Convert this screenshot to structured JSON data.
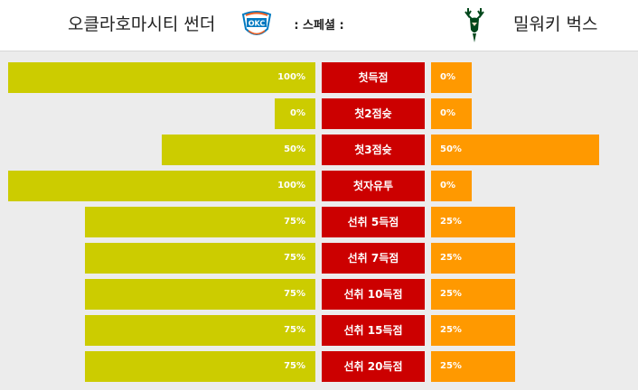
{
  "header": {
    "home_team": "오클라호마시티 썬더",
    "away_team": "밀워키 벅스",
    "center_label": ": 스페셜 :"
  },
  "logos": {
    "home": {
      "name": "okc-thunder-logo",
      "color": "#007ac1",
      "accent": "#ef6125",
      "text": "OKC"
    },
    "away": {
      "name": "bucks-deer-logo",
      "color": "#00471b",
      "accent": "#eee1c6"
    }
  },
  "colors": {
    "home_bar": "#cccc00",
    "away_bar": "#ff9900",
    "label_bg": "#cc0000"
  },
  "rows": [
    {
      "label": "첫득점",
      "home": "100%",
      "away": "0%",
      "home_pct": 100,
      "away_pct": 0
    },
    {
      "label": "첫2점슛",
      "home": "0%",
      "away": "0%",
      "home_pct": 0,
      "away_pct": 0
    },
    {
      "label": "첫3점슛",
      "home": "50%",
      "away": "50%",
      "home_pct": 50,
      "away_pct": 50
    },
    {
      "label": "첫자유투",
      "home": "100%",
      "away": "0%",
      "home_pct": 100,
      "away_pct": 0
    },
    {
      "label": "선취 5득점",
      "home": "75%",
      "away": "25%",
      "home_pct": 75,
      "away_pct": 25
    },
    {
      "label": "선취 7득점",
      "home": "75%",
      "away": "25%",
      "home_pct": 75,
      "away_pct": 25
    },
    {
      "label": "선취 10득점",
      "home": "75%",
      "away": "25%",
      "home_pct": 75,
      "away_pct": 25
    },
    {
      "label": "선취 15득점",
      "home": "75%",
      "away": "25%",
      "home_pct": 75,
      "away_pct": 25
    },
    {
      "label": "선취 20득점",
      "home": "75%",
      "away": "25%",
      "home_pct": 75,
      "away_pct": 25
    }
  ]
}
